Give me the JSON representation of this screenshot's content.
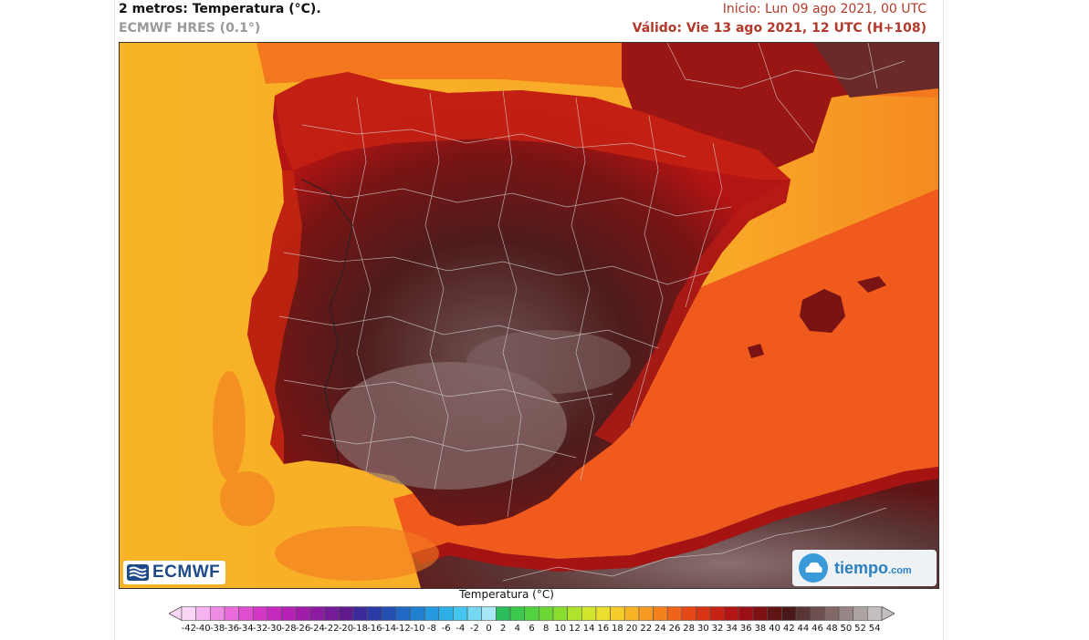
{
  "header": {
    "title": "2 metros: Temperatura (°C).",
    "subtitle": "ECMWF HRES (0.1°)",
    "init": "Inicio: Lun 09 ago 2021, 00 UTC",
    "valid": "Válido: Vie 13 ago 2021, 12 UTC (H+108)"
  },
  "logos": {
    "left": "ECMWF",
    "right_main": "tiempo",
    "right_suffix": ".com"
  },
  "legend": {
    "title": "Temperatura (°C)",
    "ticks": [
      "-42",
      "-40",
      "-38",
      "-36",
      "-34",
      "-32",
      "-30",
      "-28",
      "-26",
      "-24",
      "-22",
      "-20",
      "-18",
      "-16",
      "-14",
      "-12",
      "-10",
      "-8",
      "-6",
      "-4",
      "-2",
      "0",
      "2",
      "4",
      "6",
      "8",
      "10",
      "12",
      "14",
      "16",
      "18",
      "20",
      "22",
      "24",
      "26",
      "28",
      "30",
      "32",
      "34",
      "36",
      "38",
      "40",
      "42",
      "44",
      "46",
      "48",
      "50",
      "52",
      "54"
    ],
    "colors": [
      "#f9d6f5",
      "#f5b3ef",
      "#ef8de6",
      "#e96bdc",
      "#e04ed0",
      "#d437c6",
      "#c629bd",
      "#b522b5",
      "#a01daa",
      "#8b1ba0",
      "#751a98",
      "#601a8c",
      "#3a2a9a",
      "#2b3aa6",
      "#2450b4",
      "#2068c4",
      "#1f80d2",
      "#2598de",
      "#2eb0e6",
      "#45c6ee",
      "#74d8f2",
      "#a8e8f6",
      "#2ebd5c",
      "#3cc84c",
      "#52d23e",
      "#6cd835",
      "#8ade30",
      "#aee32e",
      "#d2e62e",
      "#ecde2e",
      "#f6cc2b",
      "#f8b427",
      "#f79a22",
      "#f5801e",
      "#f0641a",
      "#e84817",
      "#d93414",
      "#c72213",
      "#b31414",
      "#9a0f14",
      "#7f1112",
      "#611414",
      "#4a1818",
      "#5a3535",
      "#6e4f4f",
      "#836868",
      "#988585",
      "#aea3a3",
      "#c4bebe"
    ]
  }
}
